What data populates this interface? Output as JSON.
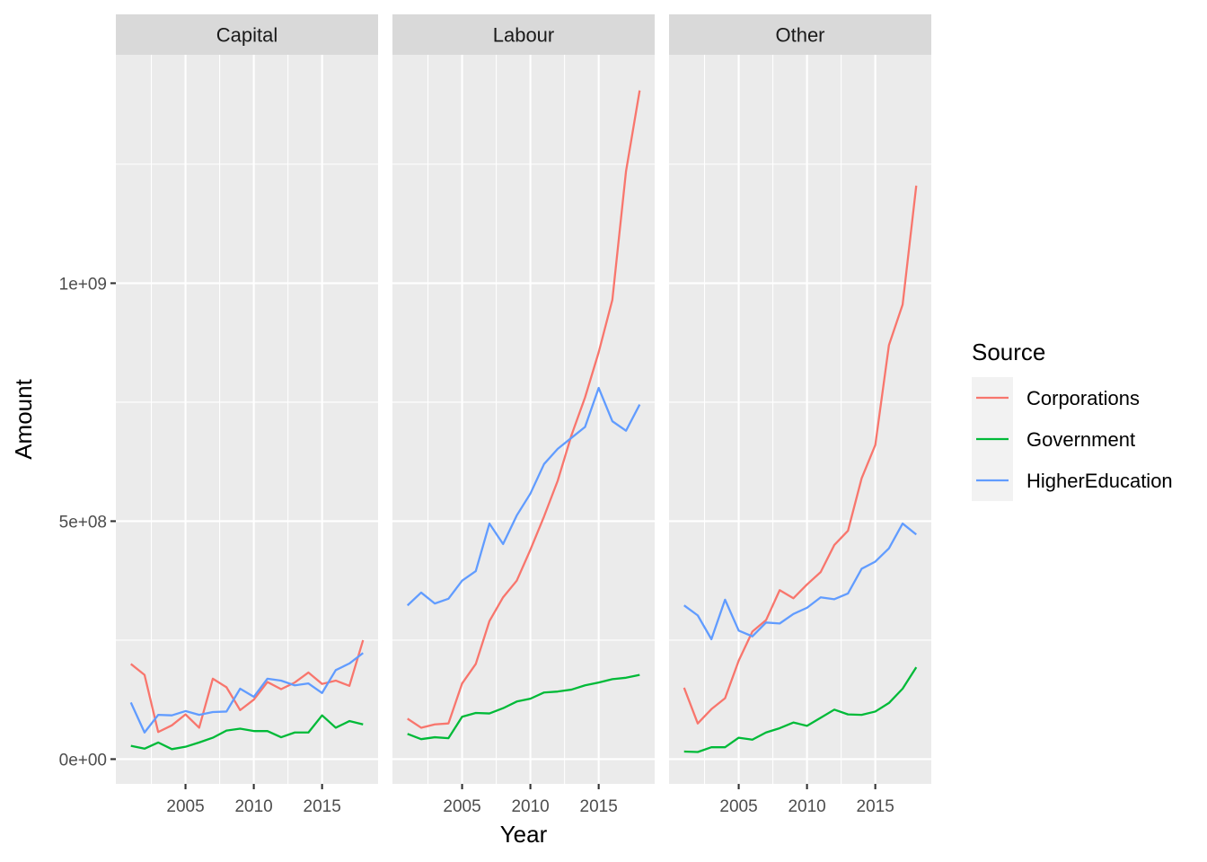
{
  "chart_data": {
    "type": "line",
    "facets": [
      "Capital",
      "Labour",
      "Other"
    ],
    "xlabel": "Year",
    "ylabel": "Amount",
    "x": [
      2001,
      2002,
      2003,
      2004,
      2005,
      2006,
      2007,
      2008,
      2009,
      2010,
      2011,
      2012,
      2013,
      2014,
      2015,
      2016,
      2017,
      2018
    ],
    "xlim": [
      1999.9,
      2019.1
    ],
    "ylim": [
      -52000000,
      1480000000
    ],
    "x_ticks": [
      2005,
      2010,
      2015
    ],
    "x_tick_labels": [
      "2005",
      "2010",
      "2015"
    ],
    "y_ticks": [
      0,
      500000000,
      1000000000
    ],
    "y_tick_labels": [
      "0e+00",
      "5e+08",
      "1e+09"
    ],
    "grid": true,
    "legend": {
      "title": "Source",
      "placement": "right",
      "entries": [
        "Corporations",
        "Government",
        "HigherEducation"
      ]
    },
    "colors": {
      "Corporations": "#F8766D",
      "Government": "#00BA38",
      "HigherEducation": "#619CFF"
    },
    "series": {
      "Capital": [
        {
          "name": "Corporations",
          "values": [
            200000000,
            177000000,
            57000000,
            71000000,
            94000000,
            66000000,
            169000000,
            151000000,
            103000000,
            125000000,
            162000000,
            147000000,
            161000000,
            182000000,
            158000000,
            165000000,
            154000000,
            250000000
          ]
        },
        {
          "name": "Government",
          "values": [
            28000000,
            22000000,
            35000000,
            21000000,
            26000000,
            35000000,
            45000000,
            60000000,
            64000000,
            59000000,
            59000000,
            46000000,
            56000000,
            56000000,
            92000000,
            66000000,
            80000000,
            73000000
          ]
        },
        {
          "name": "HigherEducation",
          "values": [
            119000000,
            56000000,
            93000000,
            92000000,
            101000000,
            93000000,
            99000000,
            100000000,
            148000000,
            131000000,
            169000000,
            165000000,
            155000000,
            159000000,
            139000000,
            187000000,
            201000000,
            223000000
          ]
        }
      ],
      "Labour": [
        {
          "name": "Corporations",
          "values": [
            85000000,
            66000000,
            73000000,
            75000000,
            159000000,
            200000000,
            290000000,
            340000000,
            375000000,
            440000000,
            510000000,
            585000000,
            680000000,
            760000000,
            855000000,
            965000000,
            1235000000,
            1405000000
          ]
        },
        {
          "name": "Government",
          "values": [
            53000000,
            42000000,
            46000000,
            44000000,
            89000000,
            97000000,
            96000000,
            107000000,
            121000000,
            127000000,
            140000000,
            142000000,
            146000000,
            155000000,
            161000000,
            168000000,
            171000000,
            177000000
          ]
        },
        {
          "name": "HigherEducation",
          "values": [
            323000000,
            350000000,
            327000000,
            337000000,
            375000000,
            395000000,
            495000000,
            452000000,
            512000000,
            558000000,
            620000000,
            652000000,
            675000000,
            698000000,
            780000000,
            710000000,
            690000000,
            745000000
          ]
        }
      ],
      "Other": [
        {
          "name": "Corporations",
          "values": [
            150000000,
            75000000,
            105000000,
            128000000,
            207000000,
            268000000,
            292000000,
            355000000,
            338000000,
            367000000,
            393000000,
            450000000,
            480000000,
            590000000,
            660000000,
            870000000,
            955000000,
            1205000000
          ]
        },
        {
          "name": "Government",
          "values": [
            16000000,
            15000000,
            25000000,
            25000000,
            45000000,
            41000000,
            56000000,
            65000000,
            77000000,
            70000000,
            87000000,
            104000000,
            94000000,
            93000000,
            100000000,
            118000000,
            148000000,
            193000000
          ]
        },
        {
          "name": "HigherEducation",
          "values": [
            323000000,
            302000000,
            252000000,
            335000000,
            270000000,
            258000000,
            287000000,
            285000000,
            305000000,
            318000000,
            340000000,
            336000000,
            348000000,
            400000000,
            415000000,
            443000000,
            495000000,
            472000000
          ]
        }
      ]
    }
  }
}
